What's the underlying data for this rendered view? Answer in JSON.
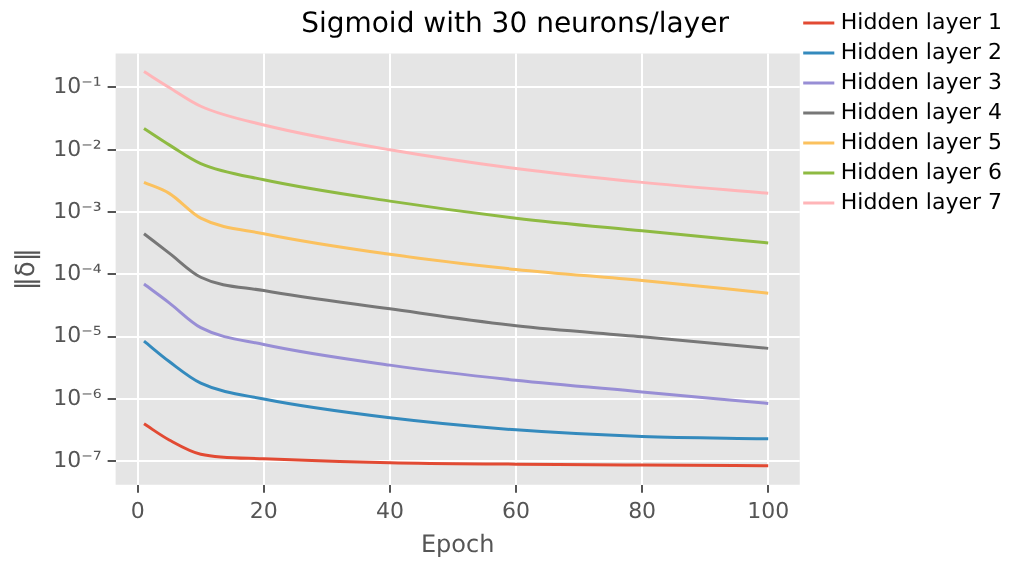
{
  "chart_data": {
    "type": "line",
    "title": "Sigmoid with 30 neurons/layer",
    "xlabel": "Epoch",
    "ylabel": "‖δ‖",
    "log": "y",
    "grid": true,
    "legend": "right",
    "marker": "none",
    "line_style": "solid",
    "x": [
      1,
      5,
      10,
      20,
      40,
      60,
      80,
      100
    ],
    "xlim": [
      -3.5,
      105
    ],
    "xticks": [
      0,
      20,
      40,
      60,
      80,
      100
    ],
    "ylim": [
      4.2e-08,
      0.35
    ],
    "yticks": [
      {
        "value": 1e-07,
        "label": "10⁻⁷"
      },
      {
        "value": 1e-06,
        "label": "10⁻⁶"
      },
      {
        "value": 1e-05,
        "label": "10⁻⁵"
      },
      {
        "value": 0.0001,
        "label": "10⁻⁴"
      },
      {
        "value": 0.001,
        "label": "10⁻³"
      },
      {
        "value": 0.01,
        "label": "10⁻²"
      },
      {
        "value": 0.1,
        "label": "10⁻¹"
      }
    ],
    "series": [
      {
        "name": "Hidden layer 1",
        "color": "#e24a33",
        "values": [
          4e-07,
          2.2e-07,
          1.3e-07,
          1.1e-07,
          9.5e-08,
          9e-08,
          8.7e-08,
          8.5e-08
        ]
      },
      {
        "name": "Hidden layer 2",
        "color": "#348abd",
        "values": [
          8.5e-06,
          4e-06,
          1.8e-06,
          1e-06,
          5e-07,
          3.2e-07,
          2.5e-07,
          2.3e-07
        ]
      },
      {
        "name": "Hidden layer 3",
        "color": "#988ed5",
        "values": [
          7e-05,
          3.5e-05,
          1.4e-05,
          7.5e-06,
          3.5e-06,
          2e-06,
          1.3e-06,
          8.5e-07
        ]
      },
      {
        "name": "Hidden layer 4",
        "color": "#777777",
        "values": [
          0.00045,
          0.00022,
          9e-05,
          5.5e-05,
          2.8e-05,
          1.5e-05,
          1e-05,
          6.5e-06
        ]
      },
      {
        "name": "Hidden layer 5",
        "color": "#fbc15e",
        "values": [
          0.003,
          0.002,
          0.0008,
          0.00045,
          0.00021,
          0.00012,
          8e-05,
          5e-05
        ]
      },
      {
        "name": "Hidden layer 6",
        "color": "#8eba42",
        "values": [
          0.022,
          0.012,
          0.006,
          0.0033,
          0.0015,
          0.0008,
          0.0005,
          0.00032
        ]
      },
      {
        "name": "Hidden layer 7",
        "color": "#ffb5b8",
        "values": [
          0.18,
          0.1,
          0.05,
          0.025,
          0.01,
          0.005,
          0.003,
          0.002
        ]
      }
    ]
  }
}
